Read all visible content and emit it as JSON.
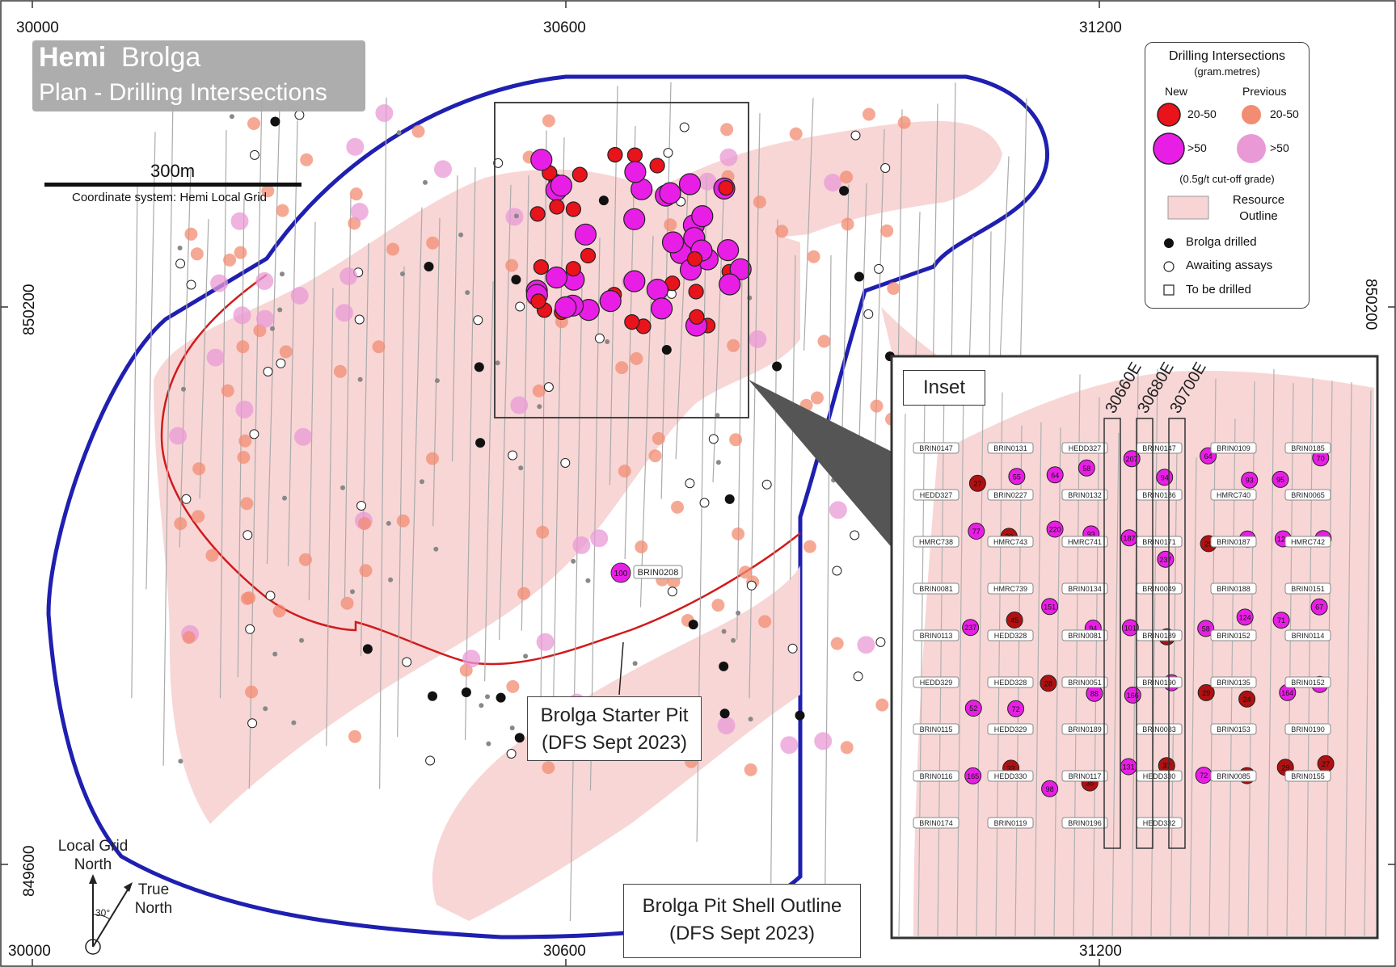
{
  "title": {
    "main_bold": "Hemi",
    "main_rest": "Brolga",
    "subtitle": "Plan - Drilling Intersections"
  },
  "scale_bar": {
    "label": "300m",
    "coordinate_system": "Coordinate system: Hemi Local Grid"
  },
  "grid_labels": {
    "east_top": [
      "30000",
      "30600",
      "31200"
    ],
    "east_bottom": [
      "30000",
      "30600",
      "31200"
    ],
    "north_left": [
      "850200",
      "849600"
    ],
    "north_right": [
      "850200",
      "849600"
    ]
  },
  "legend": {
    "title": "Drilling Intersections",
    "subtitle": "(gram.metres)",
    "col_new": "New",
    "col_previous": "Previous",
    "range_low_new": "20-50",
    "range_low_prev": "20-50",
    "range_high_new": ">50",
    "range_high_prev": ">50",
    "cutoff": "(0.5g/t cut-off grade)",
    "resource_line1": "Resource",
    "resource_line2": "Outline",
    "drilled": "Brolga drilled",
    "awaiting": "Awaiting assays",
    "to_drill": "To be drilled",
    "colors": {
      "new_low": "#e8131b",
      "prev_low": "#f28c72",
      "new_high": "#e91ee6",
      "prev_high": "#e99ad6",
      "resource": "#f8d4d4",
      "pit_shell": "#1f1fb0",
      "starter_pit": "#d11a1a"
    }
  },
  "callouts": {
    "starter_pit_line1": "Brolga Starter Pit",
    "starter_pit_line2": "(DFS Sept 2023)",
    "pit_shell_line1": "Brolga Pit Shell Outline",
    "pit_shell_line2": "(DFS Sept 2023)"
  },
  "north_arrow": {
    "grid_line1": "Local Grid",
    "grid_line2": "North",
    "true_line1": "True",
    "true_line2": "North",
    "angle": "30°"
  },
  "main_map_labels": {
    "hole_value": "100",
    "hole_id": "BRIN0208"
  },
  "inset": {
    "title": "Inset",
    "sections": [
      "30660E",
      "30680E",
      "30700E"
    ],
    "bottom_coord": "31200",
    "hole_labels": [
      "BRIN0147",
      "BRIN0131",
      "HEDD327",
      "BRIN0147",
      "BRIN0109",
      "BRIN0185",
      "HEDD327",
      "BRIN0227",
      "BRIN0132",
      "BRIN0186",
      "HMRC740",
      "BRIN0065",
      "HMRC738",
      "HMRC743",
      "HMRC741",
      "BRIN0171",
      "BRIN0187",
      "HMRC742",
      "BRIN0081",
      "HMRC739",
      "BRIN0134",
      "BRIN0049",
      "BRIN0188",
      "BRIN0151",
      "BRIN0113",
      "HEDD328",
      "BRIN0081",
      "BRIN0189",
      "BRIN0152",
      "BRIN0114",
      "HEDD329",
      "HEDD328",
      "BRIN0051",
      "BRIN0190",
      "BRIN0135",
      "BRIN0152",
      "BRIN0115",
      "HEDD329",
      "BRIN0189",
      "BRIN0083",
      "BRIN0153",
      "BRIN0190",
      "BRIN0116",
      "HEDD330",
      "BRIN0117",
      "HEDD330",
      "BRIN0085",
      "BRIN0155",
      "BRIN0174",
      "BRIN0119",
      "BRIN0196",
      "HEDD332"
    ],
    "values": [
      "27",
      "55",
      "64",
      "58",
      "207",
      "94",
      "64",
      "93",
      "95",
      "70",
      "77",
      "29",
      "220",
      "93",
      "187",
      "237",
      "29",
      "166",
      "124",
      "184",
      "237",
      "45",
      "151",
      "94",
      "101",
      "29",
      "58",
      "124",
      "71",
      "67",
      "52",
      "72",
      "28",
      "88",
      "166",
      "129",
      "29",
      "24",
      "164",
      "74",
      "165",
      "33",
      "98",
      "35",
      "131",
      "37",
      "72",
      "29",
      "29",
      "27"
    ]
  }
}
